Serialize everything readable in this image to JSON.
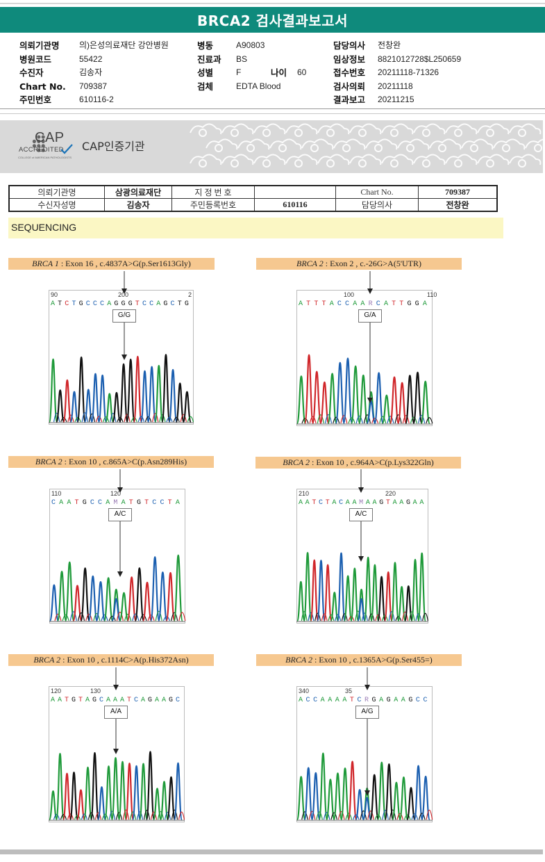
{
  "title": "BRCA2 검사결과보고서",
  "header": {
    "col1": [
      {
        "label": "의뢰기관명",
        "value": "의)은성의료재단 강안병원"
      },
      {
        "label": "병원코드",
        "value": "55422"
      },
      {
        "label": "수진자",
        "value": "김송자"
      },
      {
        "label": "Chart No.",
        "value": "709387"
      },
      {
        "label": "주민번호",
        "value": "610116-2"
      }
    ],
    "col2": [
      {
        "label": "병동",
        "value": "A90803"
      },
      {
        "label": "진료과",
        "value": "BS"
      },
      {
        "label": "성별",
        "value": "F"
      },
      {
        "label": "검체",
        "value": "EDTA Blood"
      }
    ],
    "age_label": "나이",
    "age_value": "60",
    "col3": [
      {
        "label": "담당의사",
        "value": "전창완"
      },
      {
        "label": "임상정보",
        "value": "8821012728$L250659"
      },
      {
        "label": "접수번호",
        "value": "20211118-71326"
      },
      {
        "label": "검사의뢰",
        "value": "20211118"
      },
      {
        "label": "결과보고",
        "value": "20211215"
      }
    ]
  },
  "cap": {
    "logo_text": "CAP",
    "accredited": "ACCREDITED",
    "small_text": "COLLEGE of AMERICAN PATHOLOGISTS",
    "title": "CAP인증기관"
  },
  "patient_table": {
    "r1": {
      "l1": "의뢰기관명",
      "v1": "삼광의료재단",
      "l2": "지 정 번 호",
      "v2": "",
      "l3": "Chart No.",
      "v3": "709387"
    },
    "r2": {
      "l1": "수신자성명",
      "v1": "김송자",
      "l2": "주민등록번호",
      "v2": "610116",
      "l3": "담당의사",
      "v3": "전창완"
    }
  },
  "section_title": "SEQUENCING",
  "panels": [
    {
      "gene": "BRCA 1",
      "rest": " : Exon 16 , c.4837A>G(p.Ser1613Gly)",
      "call": "G/G",
      "left_num": "90",
      "mid_num": "200",
      "right_num": "2",
      "seq": "ATCTGCCCAGGGTCCAGCTG",
      "seq_colors": "AGTCGCCCAGGGTCCAGCGG"
    },
    {
      "gene": "BRCA 2",
      "rest": " : Exon 2 , c.-26G>A(5'UTR)",
      "call": "G/A",
      "left_num": "",
      "mid_num": "100",
      "right_num": "110",
      "seq": "ATTTACCAARCATTGGA",
      "seq_colors": "ATTTACCAANCATTGGA"
    },
    {
      "gene": "BRCA 2",
      "rest": " : Exon 10 , c.865A>C(p.Asn289His)",
      "call": "A/C",
      "left_num": "110",
      "mid_num": "120",
      "right_num": "",
      "seq": "CAATGCCAMATGTCCTA",
      "seq_colors": "CAATGCCANATGTCCTA"
    },
    {
      "gene": "BRCA 2",
      "rest": " : Exon 10 , c.964A>C(p.Lys322Gln)",
      "call": "A/C",
      "left_num": "210",
      "mid_num": "220",
      "right_num": "",
      "seq": "AATCTACAAMAAGTAAGAA",
      "seq_colors": "AATCTACAANAAGTAAGAA"
    },
    {
      "gene": "BRCA 2",
      "rest": " : Exon 10 , c.1114C>A(p.His372Asn)",
      "call": "A/A",
      "left_num": "120",
      "mid_num": "130",
      "right_num": "",
      "seq": "AATGTAGCAAATCAGAAGC",
      "seq_colors": "AATGTAGCAAATCAGAAGC"
    },
    {
      "gene": "BRCA 2",
      "rest": " : Exon 10 , c.1365A>G(p.Ser455=)",
      "call": "A/G",
      "left_num": "340",
      "mid_num": "35",
      "right_num": "",
      "seq": "ACCAAAATCRGAGAAGCC",
      "seq_colors": "ACCAAAATCNGAGAAGCC"
    }
  ],
  "colors": {
    "A": "#1f9a3a",
    "C": "#1b5fb0",
    "G": "#111111",
    "T": "#d0262a",
    "N": "#9a7bb5",
    "teal": "#0f8a7c"
  }
}
